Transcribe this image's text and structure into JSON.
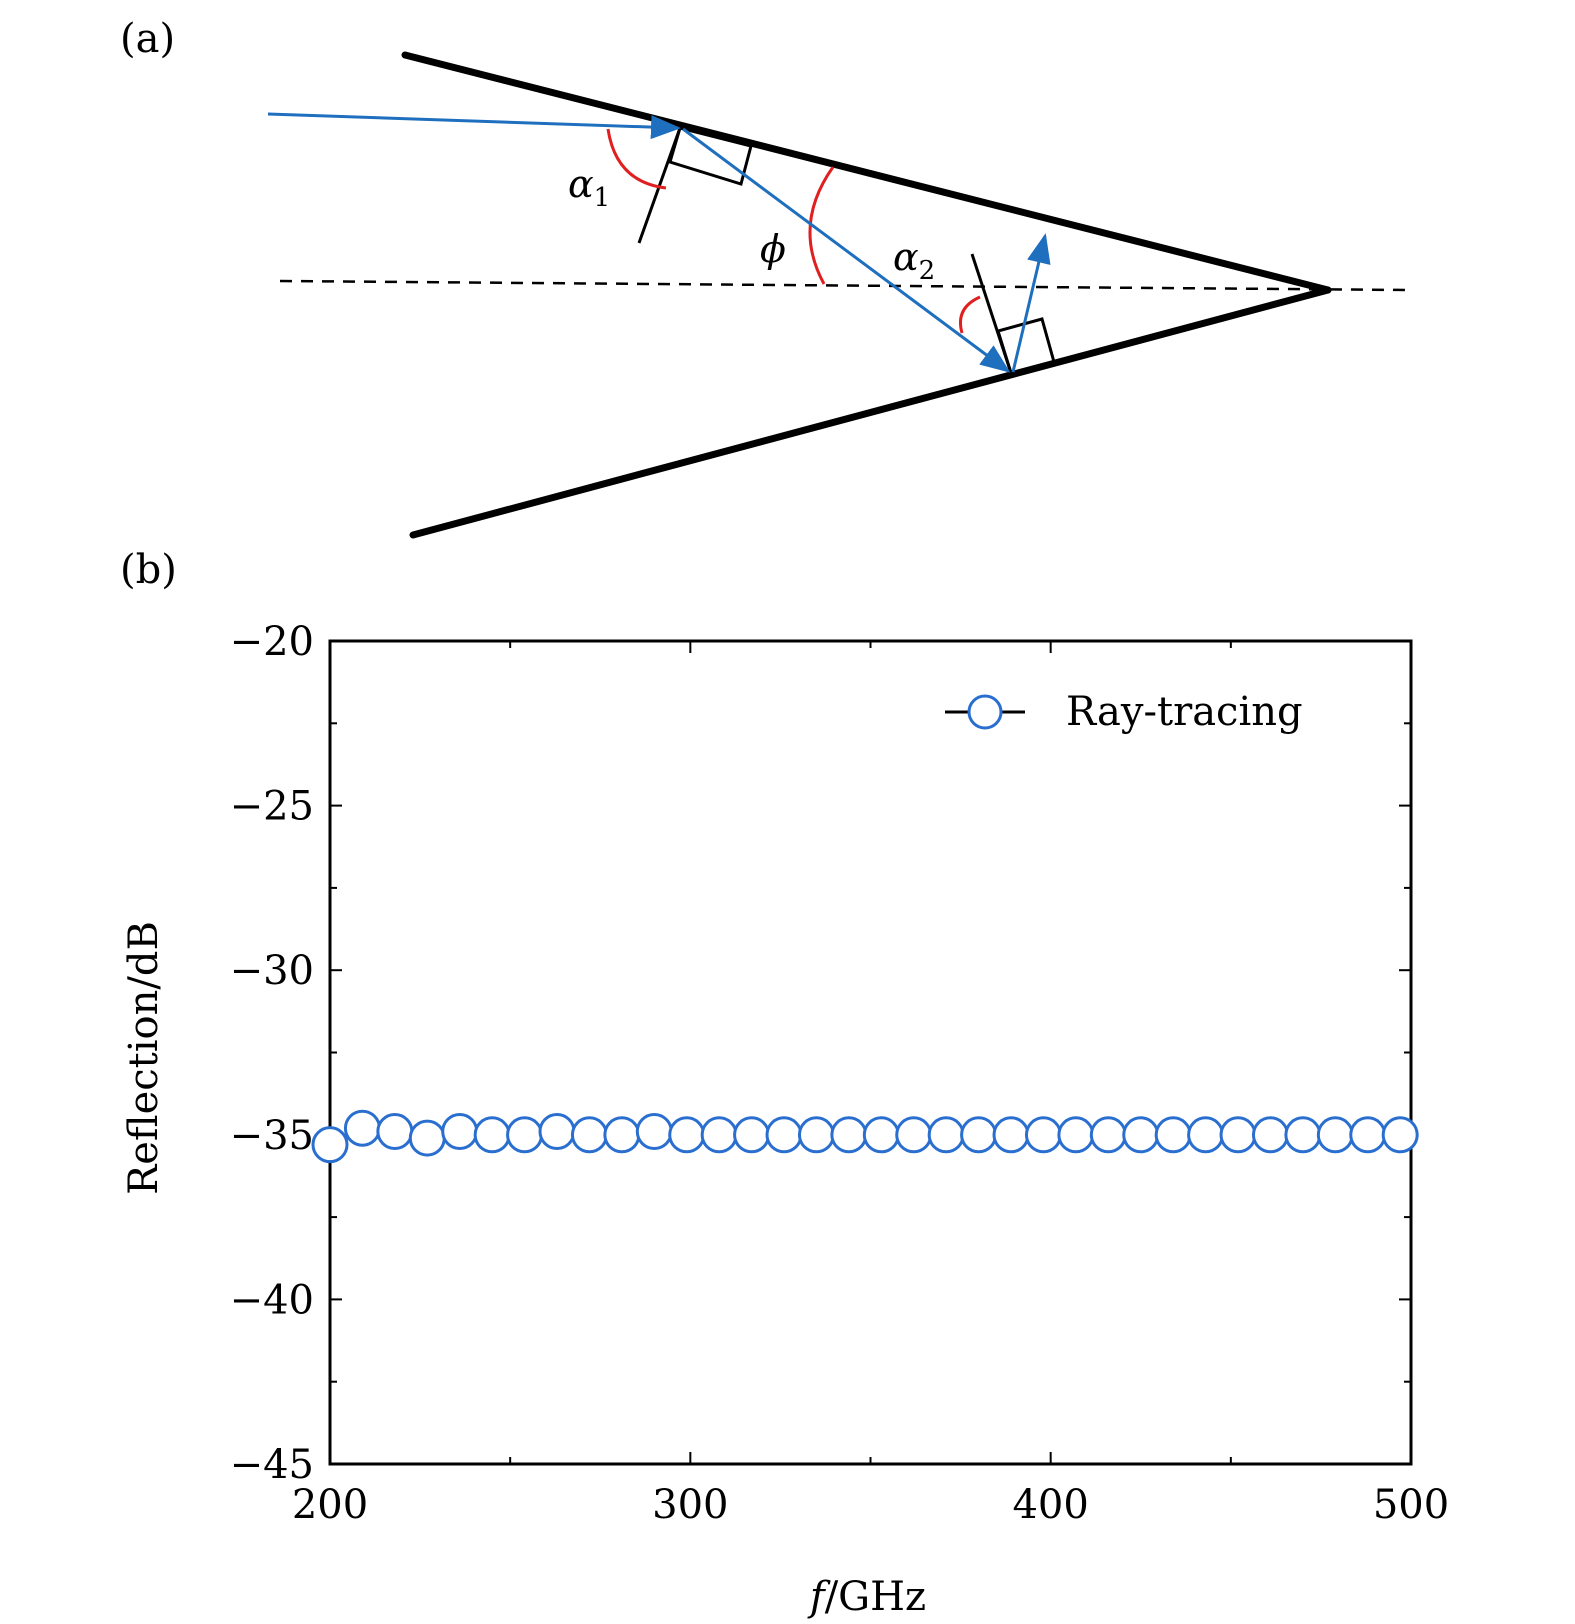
{
  "panel_a": {
    "label": "(a)",
    "angle_alpha1": "α",
    "angle_alpha1_sub": "1",
    "angle_phi": "ϕ",
    "angle_alpha2": "α",
    "angle_alpha2_sub": "2",
    "ray_color": "#1f6fbf",
    "angle_arc_color": "#e02020"
  },
  "panel_b": {
    "label": "(b)"
  },
  "chart_data": {
    "type": "scatter",
    "title": "",
    "xlabel_italic": "f",
    "xlabel_rest": "/GHz",
    "ylabel": "Reflection/dB",
    "xlim": [
      200,
      500
    ],
    "ylim": [
      -45,
      -20
    ],
    "xticks": [
      200,
      300,
      400,
      500
    ],
    "yticks": [
      -20,
      -25,
      -30,
      -35,
      -40,
      -45
    ],
    "ytick_labels": [
      "−20",
      "−25",
      "−30",
      "−35",
      "−40",
      "−45"
    ],
    "grid": false,
    "legend_position": "top-right",
    "series": [
      {
        "name": "Ray-tracing",
        "color": "#2a6fcf",
        "marker": "open-circle",
        "x": [
          200,
          209,
          218,
          227,
          236,
          245,
          254,
          263,
          272,
          281,
          290,
          299,
          308,
          317,
          326,
          335,
          344,
          353,
          362,
          371,
          380,
          389,
          398,
          407,
          416,
          425,
          434,
          443,
          452,
          461,
          470,
          479,
          488,
          497
        ],
        "y": [
          -35.3,
          -34.8,
          -34.9,
          -35.1,
          -34.9,
          -35.0,
          -35.0,
          -34.9,
          -35.0,
          -35.0,
          -34.9,
          -35.0,
          -35.0,
          -35.0,
          -35.0,
          -35.0,
          -35.0,
          -35.0,
          -35.0,
          -35.0,
          -35.0,
          -35.0,
          -35.0,
          -35.0,
          -35.0,
          -35.0,
          -35.0,
          -35.0,
          -35.0,
          -35.0,
          -35.0,
          -35.0,
          -35.0,
          -35.0
        ]
      }
    ]
  }
}
